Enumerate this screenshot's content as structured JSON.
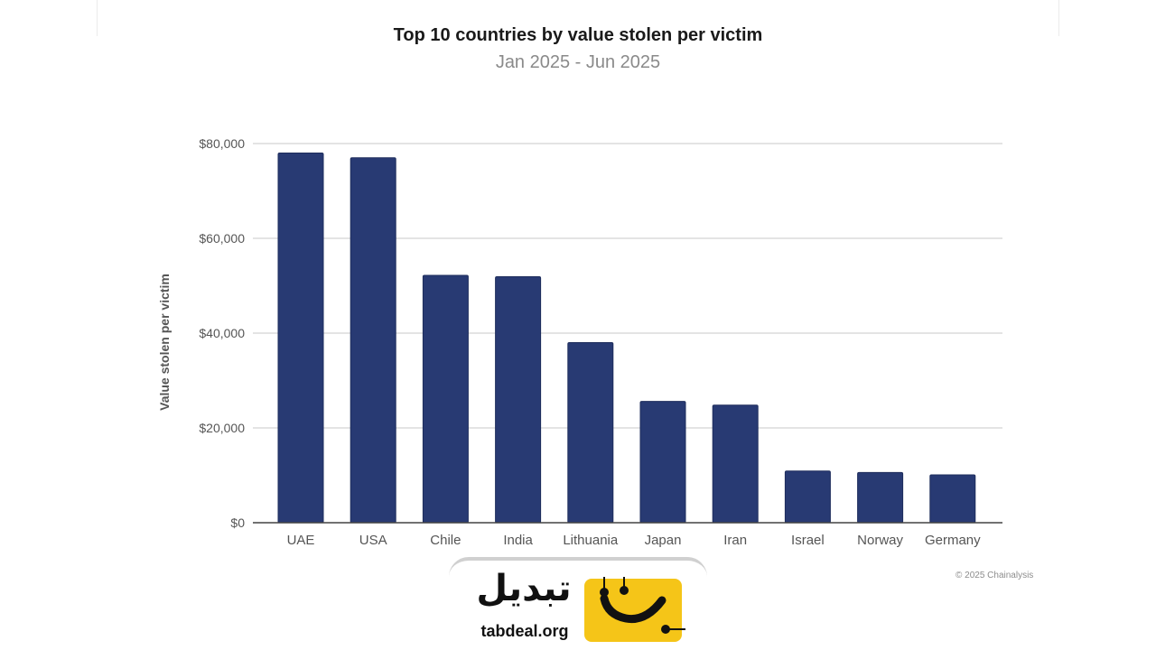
{
  "chart_data": {
    "type": "bar",
    "title": "Top 10 countries by value stolen per victim",
    "subtitle": "Jan 2025 - Jun 2025",
    "xlabel": "",
    "ylabel": "Value stolen per victim",
    "categories": [
      "UAE",
      "USA",
      "Chile",
      "India",
      "Lithuania",
      "Japan",
      "Iran",
      "Israel",
      "Norway",
      "Germany"
    ],
    "values": [
      78000,
      77000,
      52200,
      51900,
      38000,
      25600,
      24800,
      10900,
      10600,
      10100
    ],
    "ylim": [
      0,
      80000
    ],
    "yticks": [
      0,
      20000,
      40000,
      60000,
      80000
    ],
    "ytick_labels": [
      "$0",
      "$20,000",
      "$40,000",
      "$60,000",
      "$80,000"
    ],
    "grid": true,
    "bar_color": "#283a73",
    "grid_color": "#d4d4d4",
    "axis_color": "#444444"
  },
  "footer": {
    "copyright": "© 2025 Chainalysis"
  },
  "watermark": {
    "arabic_text": "تبدیل",
    "domain": "tabdeal.org",
    "icon": "tabdeal-smile-logo-icon",
    "accent": "#f5c518"
  }
}
